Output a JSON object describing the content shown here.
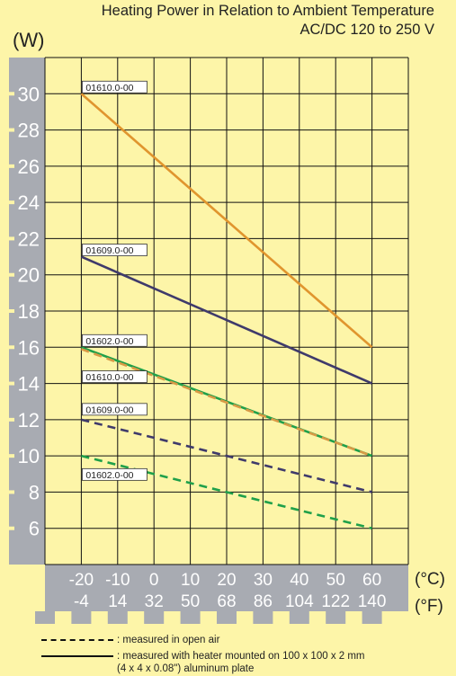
{
  "title": "Heating Power in Relation to Ambient Temperature",
  "subtitle": "AC/DC 120 to 250 V",
  "chart_data": {
    "type": "line",
    "ylabel": "(W)",
    "xlabel_c": "(°C)",
    "xlabel_f": "(°F)",
    "xlim": [
      -30,
      70
    ],
    "ylim": [
      4,
      32
    ],
    "yticks": [
      6,
      8,
      10,
      12,
      14,
      16,
      18,
      20,
      22,
      24,
      26,
      28,
      30
    ],
    "xticks_c": [
      "-20",
      "-10",
      "0",
      "10",
      "20",
      "30",
      "40",
      "50",
      "60"
    ],
    "xticks_f": [
      "-4",
      "14",
      "32",
      "50",
      "68",
      "86",
      "104",
      "122",
      "140"
    ],
    "grid": true,
    "series": [
      {
        "name": "01610.0-00",
        "style": "solid",
        "color": "#e0952e",
        "x": [
          -20,
          60
        ],
        "y": [
          30,
          16
        ]
      },
      {
        "name": "01609.0-00",
        "style": "solid",
        "color": "#3f3a6b",
        "x": [
          -20,
          60
        ],
        "y": [
          21,
          14
        ]
      },
      {
        "name": "01602.0-00",
        "style": "solid",
        "color": "#1fa04a",
        "x": [
          -20,
          60
        ],
        "y": [
          16,
          10
        ]
      },
      {
        "name": "01610.0-00",
        "style": "dashed",
        "color": "#d99a45",
        "x": [
          -20,
          60
        ],
        "y": [
          15.9,
          10
        ]
      },
      {
        "name": "01609.0-00",
        "style": "dashed",
        "color": "#3f3a6b",
        "x": [
          -20,
          60
        ],
        "y": [
          12,
          8
        ]
      },
      {
        "name": "01602.0-00",
        "style": "dashed",
        "color": "#1fa04a",
        "x": [
          -20,
          60
        ],
        "y": [
          10,
          6
        ]
      }
    ],
    "labels": [
      {
        "text": "01610.0-00",
        "x": -20,
        "y": 30
      },
      {
        "text": "01609.0-00",
        "x": -20,
        "y": 21
      },
      {
        "text": "01602.0-00",
        "x": -20,
        "y": 16
      },
      {
        "text": "01610.0-00",
        "x": -20,
        "y": 14
      },
      {
        "text": "01609.0-00",
        "x": -20,
        "y": 12.2
      },
      {
        "text": "01602.0-00",
        "x": -20,
        "y": 8.6
      }
    ]
  },
  "legend": {
    "dashed_text": ": measured in open air",
    "solid_text_1": ": measured with heater mounted on 100 x 100 x 2 mm",
    "solid_text_2": "(4 x 4 x 0.08\") aluminum plate"
  },
  "colors": {
    "background": "#fdf5a8",
    "axis_band": "#a8abb2",
    "grid": "#111111"
  }
}
